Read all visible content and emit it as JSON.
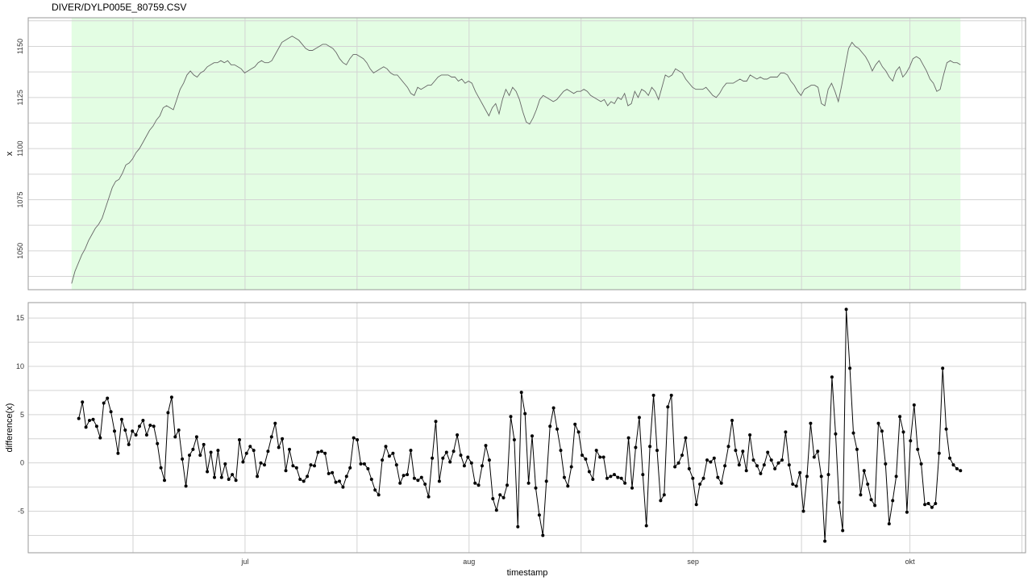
{
  "title": "DIVER/DYLP005E_80759.CSV",
  "colors": {
    "highlight": "#e3fde3",
    "grid": "#d4d4d4",
    "frame": "#9a9a9a",
    "top_line": "#666666",
    "bottom_line": "#000000"
  },
  "chart_data": [
    {
      "type": "line",
      "panel": "top",
      "ylabel": "x",
      "ylim": [
        1031,
        1164
      ],
      "yticks": [
        1050,
        1075,
        1100,
        1125,
        1150
      ],
      "grid": true,
      "highlighted_range": [
        "2024-06-07",
        "2024-10-08"
      ],
      "series": [
        {
          "x_start": "2024-06-07",
          "x_end": "2024-10-08",
          "values": [
            1034,
            1040,
            1044,
            1048,
            1051,
            1055,
            1058,
            1061,
            1063,
            1066,
            1071,
            1076,
            1081,
            1084,
            1085,
            1088,
            1092,
            1093,
            1095,
            1098,
            1100,
            1103,
            1106,
            1109,
            1111,
            1114,
            1116,
            1120,
            1121,
            1120,
            1119,
            1124,
            1129,
            1132,
            1136,
            1138,
            1136,
            1135,
            1137,
            1138,
            1140,
            1141,
            1142,
            1142,
            1143,
            1142,
            1143,
            1141,
            1141,
            1140,
            1139,
            1137,
            1138,
            1139,
            1140,
            1142,
            1143,
            1142,
            1142,
            1143,
            1146,
            1149,
            1152,
            1153,
            1154,
            1155,
            1154,
            1153,
            1151,
            1149,
            1148,
            1148,
            1149,
            1150,
            1151,
            1151,
            1150,
            1149,
            1147,
            1144,
            1142,
            1141,
            1144,
            1146,
            1146,
            1145,
            1144,
            1142,
            1139,
            1137,
            1138,
            1139,
            1140,
            1139,
            1137,
            1136,
            1136,
            1134,
            1132,
            1130,
            1127,
            1126,
            1130,
            1129,
            1130,
            1131,
            1131,
            1133,
            1135,
            1136,
            1136,
            1136,
            1135,
            1135,
            1133,
            1134,
            1132,
            1133,
            1132,
            1128,
            1125,
            1122,
            1119,
            1116,
            1120,
            1122,
            1117,
            1124,
            1129,
            1126,
            1130,
            1128,
            1124,
            1118,
            1113,
            1112,
            1115,
            1119,
            1124,
            1126,
            1125,
            1124,
            1123,
            1124,
            1126,
            1128,
            1129,
            1128,
            1127,
            1128,
            1128,
            1129,
            1128,
            1126,
            1125,
            1124,
            1123,
            1124,
            1121,
            1123,
            1122,
            1125,
            1124,
            1127,
            1121,
            1122,
            1128,
            1125,
            1129,
            1128,
            1126,
            1130,
            1128,
            1124,
            1130,
            1136,
            1135,
            1136,
            1139,
            1138,
            1137,
            1134,
            1132,
            1130,
            1129,
            1129,
            1129,
            1130,
            1128,
            1126,
            1125,
            1127,
            1130,
            1132,
            1132,
            1132,
            1133,
            1134,
            1133,
            1133,
            1136,
            1135,
            1134,
            1135,
            1134,
            1134,
            1135,
            1135,
            1135,
            1137,
            1137,
            1136,
            1133,
            1131,
            1128,
            1126,
            1129,
            1130,
            1131,
            1131,
            1130,
            1122,
            1121,
            1129,
            1132,
            1128,
            1123,
            1131,
            1140,
            1149,
            1152,
            1150,
            1149,
            1147,
            1145,
            1142,
            1138,
            1141,
            1143,
            1140,
            1138,
            1135,
            1133,
            1138,
            1140,
            1135,
            1137,
            1140,
            1144,
            1145,
            1144,
            1141,
            1138,
            1134,
            1132,
            1128,
            1129,
            1136,
            1142,
            1143,
            1142,
            1142,
            1141
          ]
        }
      ]
    },
    {
      "type": "line",
      "panel": "bottom",
      "xlabel": "timestamp",
      "ylabel": "difference(x)",
      "ylim": [
        -9.3,
        16.6
      ],
      "yticks": [
        -5,
        0,
        5,
        10,
        15
      ],
      "xticks": [
        "jul",
        "aug",
        "sep",
        "okt"
      ],
      "xtick_dates": [
        "2024-07-01",
        "2024-08-01",
        "2024-09-01",
        "2024-10-01"
      ],
      "grid": true,
      "markers": true,
      "series": [
        {
          "x_start": "2024-06-08",
          "x_end": "2024-10-08",
          "values": [
            4.6,
            6.3,
            3.7,
            4.4,
            4.5,
            3.8,
            2.6,
            6.2,
            6.7,
            5.3,
            3.3,
            1.0,
            4.5,
            3.4,
            1.9,
            3.3,
            2.9,
            3.8,
            4.4,
            2.9,
            3.9,
            3.8,
            2.0,
            -0.5,
            -1.8,
            5.2,
            6.8,
            2.7,
            3.4,
            0.4,
            -2.4,
            0.8,
            1.4,
            2.7,
            0.8,
            1.9,
            -0.9,
            1.1,
            -1.5,
            1.3,
            -1.5,
            -0.1,
            -1.7,
            -1.2,
            -1.8,
            2.4,
            0.1,
            1.0,
            1.7,
            1.3,
            -1.4,
            0.0,
            -0.2,
            1.2,
            2.7,
            4.1,
            1.6,
            2.5,
            -0.8,
            1.4,
            -0.3,
            -0.5,
            -1.7,
            -1.9,
            -1.4,
            -0.2,
            -0.3,
            1.1,
            1.2,
            1.0,
            -1.1,
            -1.0,
            -2.0,
            -1.9,
            -2.5,
            -1.4,
            -0.5,
            2.6,
            2.4,
            -0.1,
            -0.1,
            -0.6,
            -1.7,
            -2.8,
            -3.3,
            0.3,
            1.7,
            0.7,
            1.0,
            -0.2,
            -2.1,
            -1.3,
            -1.2,
            1.3,
            -1.6,
            -1.8,
            -1.5,
            -2.2,
            -3.5,
            0.5,
            4.3,
            -1.9,
            0.5,
            1.1,
            0.1,
            1.2,
            2.9,
            0.8,
            -0.3,
            0.6,
            0.0,
            -2.1,
            -2.3,
            -0.3,
            1.8,
            0.3,
            -3.7,
            -4.9,
            -3.3,
            -3.6,
            -2.3,
            4.8,
            2.4,
            -6.6,
            7.3,
            5.1,
            -2.1,
            2.8,
            -2.6,
            -5.4,
            -7.5,
            -1.9,
            3.8,
            5.7,
            3.5,
            1.3,
            -1.5,
            -2.4,
            -0.4,
            4.0,
            3.2,
            0.8,
            0.4,
            -0.9,
            -1.7,
            1.3,
            0.6,
            0.6,
            -1.6,
            -1.4,
            -1.2,
            -1.5,
            -1.6,
            -2.1,
            2.6,
            -2.6,
            1.6,
            4.7,
            -1.2,
            -6.5,
            1.7,
            7.0,
            1.3,
            -3.9,
            -3.3,
            5.8,
            7.0,
            -0.4,
            0.0,
            0.8,
            2.6,
            -0.6,
            -1.6,
            -4.3,
            -2.2,
            -1.6,
            0.3,
            0.1,
            0.5,
            -1.5,
            -2.1,
            -0.3,
            1.7,
            4.4,
            1.3,
            -0.2,
            1.2,
            -0.8,
            2.9,
            0.3,
            -0.3,
            -1.1,
            -0.2,
            1.1,
            0.3,
            -0.6,
            0.0,
            0.3,
            3.2,
            -0.2,
            -2.2,
            -2.4,
            -1.0,
            -5.0,
            -1.4,
            4.1,
            0.6,
            1.2,
            -1.4,
            -8.1,
            -1.2,
            8.9,
            3.0,
            -4.1,
            -7.0,
            15.9,
            9.8,
            3.1,
            1.4,
            -3.3,
            -0.8,
            -2.2,
            -3.8,
            -4.4,
            4.1,
            3.3,
            -0.1,
            -6.3,
            -3.9,
            -1.4,
            4.8,
            3.2,
            -5.1,
            2.3,
            6.0,
            1.4,
            -0.1,
            -4.3,
            -4.2,
            -4.6,
            -4.2,
            1.0,
            9.8,
            3.5,
            0.5,
            -0.2,
            -0.6,
            -0.8
          ]
        }
      ]
    }
  ]
}
